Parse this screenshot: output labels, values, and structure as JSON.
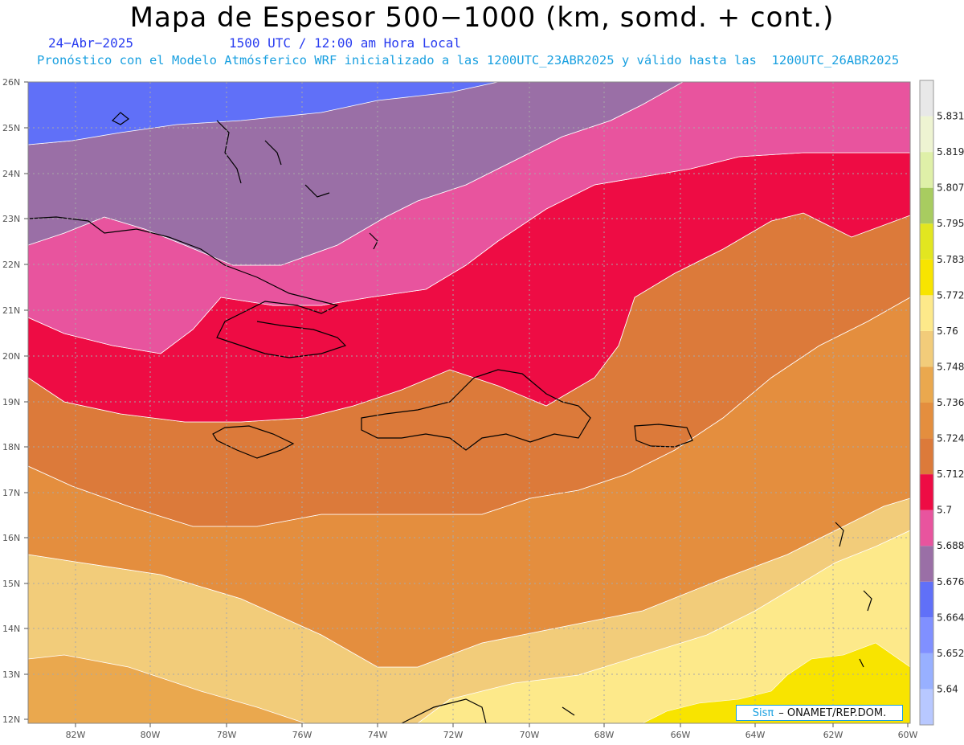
{
  "title": "Mapa de Espesor 500−1000 (km, somd. + cont.)",
  "date": "24−Abr−2025",
  "time": "1500 UTC / 12:00 am Hora Local",
  "forecast_line": "Pronóstico con el Modelo Atmósferico WRF inicializado a las 1200UTC_23ABR2025 y válido hasta las  1200UTC_26ABR2025",
  "credit": {
    "sis": "Sisπ",
    "org": "–  ONAMET/REP.DOM."
  },
  "lon_labels": [
    "82W",
    "80W",
    "78W",
    "76W",
    "74W",
    "72W",
    "70W",
    "68W",
    "66W",
    "64W",
    "62W",
    "60W"
  ],
  "lat_labels": [
    "26N",
    "25N",
    "24N",
    "23N",
    "22N",
    "21N",
    "20N",
    "19N",
    "18N",
    "17N",
    "16N",
    "15N",
    "14N",
    "13N",
    "12N"
  ],
  "colorbar": {
    "levels": [
      "5.64",
      "5.652",
      "5.664",
      "5.676",
      "5.688",
      "5.7",
      "5.712",
      "5.724",
      "5.736",
      "5.748",
      "5.76",
      "5.772",
      "5.783",
      "5.795",
      "5.807",
      "5.819",
      "5.831"
    ],
    "colors": [
      "#b8c8ff",
      "#98b0ff",
      "#8090ff",
      "#6070f8",
      "#9a6fa6",
      "#e8549e",
      "#ee0c44",
      "#dc7a3a",
      "#e48e3e",
      "#eaa84e",
      "#f2cc7a",
      "#fde98a",
      "#f8e400",
      "#e2e620",
      "#a8cc60",
      "#dff0a8",
      "#eef4d2",
      "#e8e8e8"
    ]
  },
  "region_colors": {
    "blue": "#6070f8",
    "purple": "#9a6fa6",
    "pink": "#e8549e",
    "red": "#ee0c44",
    "dark_orange": "#dc7a3a",
    "orange": "#e48e3e",
    "light_orange": "#eaa84e",
    "tan": "#f2cc7a",
    "pale_yellow": "#fde98a",
    "yellow": "#f8e400"
  }
}
